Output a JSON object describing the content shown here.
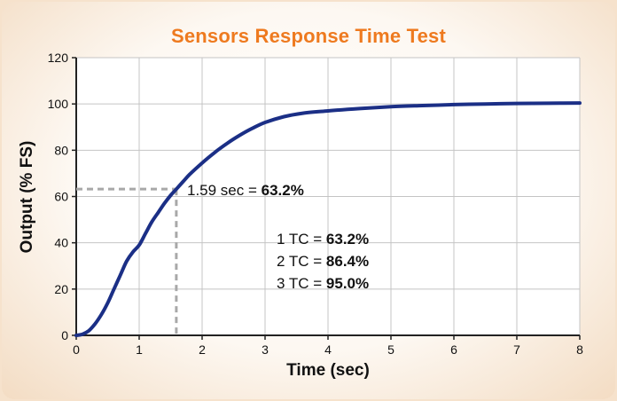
{
  "chart_data": {
    "type": "line",
    "title": "Sensors Response Time Test",
    "xlabel": "Time (sec)",
    "ylabel": "Output (% FS)",
    "xlim": [
      0,
      8
    ],
    "ylim": [
      0,
      120
    ],
    "x_ticks": [
      "0",
      "1",
      "2",
      "3",
      "4",
      "5",
      "6",
      "7",
      "8"
    ],
    "y_ticks": [
      "0",
      "20",
      "40",
      "60",
      "80",
      "100",
      "120"
    ],
    "grid": true,
    "line_color": "#1b2f86",
    "series": [
      {
        "x": [
          0,
          0.1,
          0.2,
          0.3,
          0.4,
          0.5,
          0.6,
          0.7,
          0.8,
          0.9,
          1.0,
          1.1,
          1.2,
          1.3,
          1.4,
          1.5,
          1.59,
          1.7,
          1.8,
          2.0,
          2.2,
          2.4,
          2.6,
          2.8,
          3.0,
          3.3,
          3.6,
          4.0,
          4.5,
          5.0,
          5.5,
          6.0,
          6.5,
          7.0,
          7.5,
          8.0
        ],
        "y": [
          0,
          0.5,
          2,
          5,
          9,
          14,
          20,
          26,
          32,
          36,
          39,
          44,
          49,
          53,
          57,
          60.5,
          63.2,
          66.5,
          69.5,
          74.5,
          79,
          83,
          86.5,
          89.5,
          92,
          94.5,
          96,
          97,
          98,
          98.8,
          99.3,
          99.7,
          100,
          100.2,
          100.3,
          100.4
        ]
      }
    ],
    "reference_point": {
      "x": 1.59,
      "y": 63.2
    },
    "annotations": {
      "point_label_prefix": "1.59 sec = ",
      "point_label_value": "63.2%",
      "tc": [
        {
          "prefix": "1 TC = ",
          "value": "63.2%"
        },
        {
          "prefix": "2 TC = ",
          "value": "86.4%"
        },
        {
          "prefix": "3 TC = ",
          "value": "95.0%"
        }
      ]
    }
  }
}
